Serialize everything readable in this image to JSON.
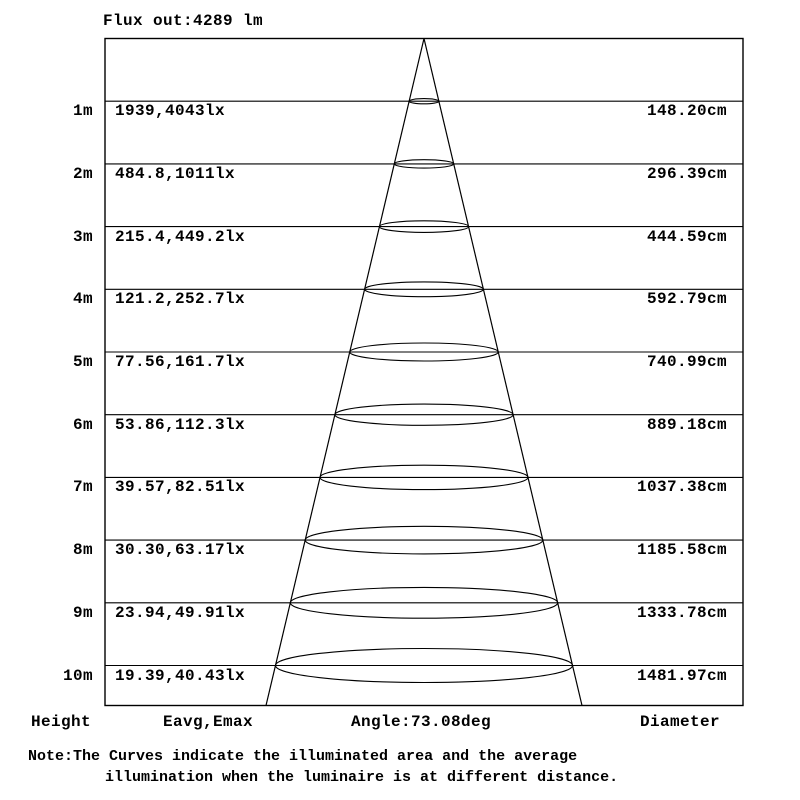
{
  "title": "Flux out:4289 lm",
  "rows": [
    {
      "height": "1m",
      "eavg_emax": "1939,4043lx",
      "diameter": "148.20cm"
    },
    {
      "height": "2m",
      "eavg_emax": "484.8,1011lx",
      "diameter": "296.39cm"
    },
    {
      "height": "3m",
      "eavg_emax": "215.4,449.2lx",
      "diameter": "444.59cm"
    },
    {
      "height": "4m",
      "eavg_emax": "121.2,252.7lx",
      "diameter": "592.79cm"
    },
    {
      "height": "5m",
      "eavg_emax": "77.56,161.7lx",
      "diameter": "740.99cm"
    },
    {
      "height": "6m",
      "eavg_emax": "53.86,112.3lx",
      "diameter": "889.18cm"
    },
    {
      "height": "7m",
      "eavg_emax": "39.57,82.51lx",
      "diameter": "1037.38cm"
    },
    {
      "height": "8m",
      "eavg_emax": "30.30,63.17lx",
      "diameter": "1185.58cm"
    },
    {
      "height": "9m",
      "eavg_emax": "23.94,49.91lx",
      "diameter": "1333.78cm"
    },
    {
      "height": "10m",
      "eavg_emax": "19.39,40.43lx",
      "diameter": "1481.97cm"
    }
  ],
  "footer": {
    "height": "Height",
    "eavg_emax": "Eavg,Emax",
    "angle": "Angle:73.08deg",
    "diameter": "Diameter"
  },
  "note": {
    "line1": "Note:The Curves indicate the illuminated area and the average",
    "line2": "illumination when the luminaire is at different distance."
  },
  "chart_data": {
    "type": "table",
    "title": "Flux out:4289 lm",
    "beam_angle_deg": 73.08,
    "flux_out_lm": 4289,
    "columns": [
      "Height",
      "Eavg,Emax",
      "Diameter"
    ],
    "heights_m": [
      1,
      2,
      3,
      4,
      5,
      6,
      7,
      8,
      9,
      10
    ],
    "eavg_lx": [
      1939,
      484.8,
      215.4,
      121.2,
      77.56,
      53.86,
      39.57,
      30.3,
      23.94,
      19.39
    ],
    "emax_lx": [
      4043,
      1011,
      449.2,
      252.7,
      161.7,
      112.3,
      82.51,
      63.17,
      49.91,
      40.43
    ],
    "diameter_cm": [
      148.2,
      296.39,
      444.59,
      592.79,
      740.99,
      889.18,
      1037.38,
      1185.58,
      1333.78,
      1481.97
    ]
  },
  "colors": {
    "background": "#ffffff",
    "line": "#000000",
    "text": "#000000"
  }
}
